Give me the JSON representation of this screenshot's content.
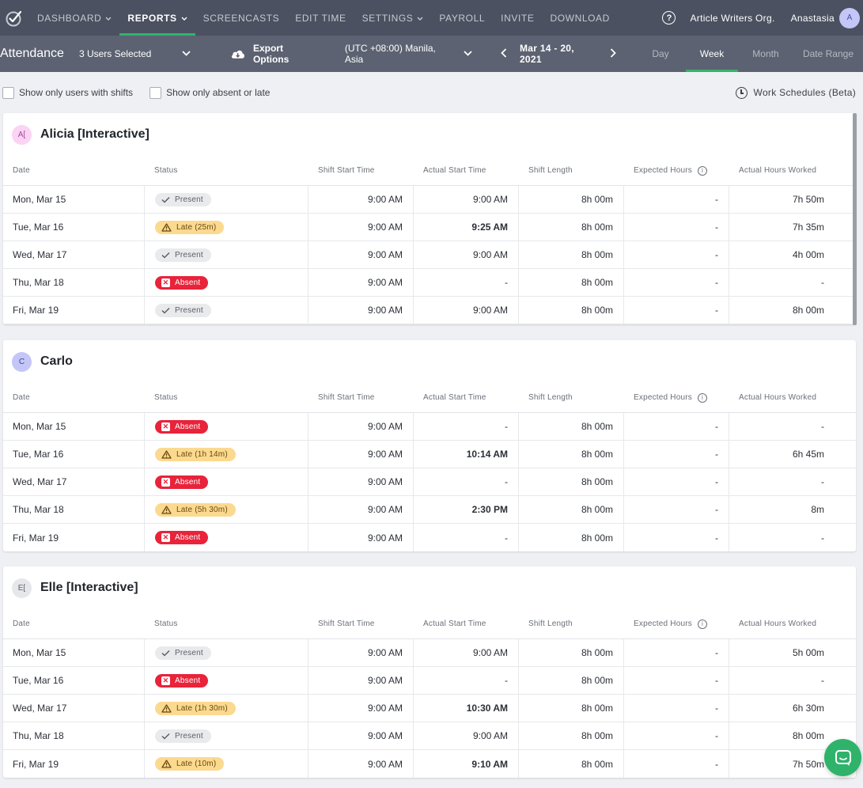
{
  "topnav": {
    "items": [
      {
        "label": "DASHBOARD",
        "caret": true,
        "active": false
      },
      {
        "label": "REPORTS",
        "caret": true,
        "active": true
      },
      {
        "label": "SCREENCASTS",
        "caret": false,
        "active": false
      },
      {
        "label": "EDIT TIME",
        "caret": false,
        "active": false
      },
      {
        "label": "SETTINGS",
        "caret": true,
        "active": false
      },
      {
        "label": "PAYROLL",
        "caret": false,
        "active": false
      },
      {
        "label": "INVITE",
        "caret": false,
        "active": false
      },
      {
        "label": "DOWNLOAD",
        "caret": false,
        "active": false
      }
    ],
    "help_glyph": "?",
    "org_name": "Article Writers Org.",
    "user_name": "Anastasia",
    "user_initial": "A"
  },
  "subbar": {
    "title": "Attendance",
    "users_selected": "3 Users Selected",
    "export_label": "Export Options",
    "timezone": "(UTC +08:00) Manila, Asia",
    "date_range": "Mar 14 - 20, 2021",
    "period_tabs": [
      {
        "label": "Day",
        "active": false
      },
      {
        "label": "Week",
        "active": true
      },
      {
        "label": "Month",
        "active": false
      },
      {
        "label": "Date Range",
        "active": false
      }
    ]
  },
  "filters": {
    "show_only_shifts": "Show only users with shifts",
    "show_only_absent": "Show only absent or late",
    "work_schedules": "Work Schedules (Beta)"
  },
  "columns": [
    "Date",
    "Status",
    "Shift Start Time",
    "Actual Start Time",
    "Shift Length",
    "Expected Hours",
    "Actual Hours Worked"
  ],
  "colors": {
    "accent": "#2fb36b",
    "present": "#e9eaec",
    "late": "#fbd98f",
    "absent": "#e8233a",
    "topnav": "#4b5160",
    "subbar": "#5c6271"
  },
  "users": [
    {
      "name": "Alicia [Interactive]",
      "avatar": "A[",
      "avatar_color": "#fbd3f3",
      "avatar_text_color": "#a0489a",
      "rows": [
        {
          "date": "Mon, Mar 15",
          "status": "present",
          "status_label": "Present",
          "shift_start": "9:00 AM",
          "actual_start": "9:00 AM",
          "actual_bold": false,
          "shift_length": "8h 00m",
          "expected": "-",
          "worked": "7h 50m"
        },
        {
          "date": "Tue, Mar 16",
          "status": "late",
          "status_label": "Late (25m)",
          "shift_start": "9:00 AM",
          "actual_start": "9:25 AM",
          "actual_bold": true,
          "shift_length": "8h 00m",
          "expected": "-",
          "worked": "7h 35m"
        },
        {
          "date": "Wed, Mar 17",
          "status": "present",
          "status_label": "Present",
          "shift_start": "9:00 AM",
          "actual_start": "9:00 AM",
          "actual_bold": false,
          "shift_length": "8h 00m",
          "expected": "-",
          "worked": "4h 00m"
        },
        {
          "date": "Thu, Mar 18",
          "status": "absent",
          "status_label": "Absent",
          "shift_start": "9:00 AM",
          "actual_start": "-",
          "actual_bold": false,
          "shift_length": "8h 00m",
          "expected": "-",
          "worked": "-"
        },
        {
          "date": "Fri, Mar 19",
          "status": "present",
          "status_label": "Present",
          "shift_start": "9:00 AM",
          "actual_start": "9:00 AM",
          "actual_bold": false,
          "shift_length": "8h 00m",
          "expected": "-",
          "worked": "8h 00m"
        }
      ]
    },
    {
      "name": "Carlo",
      "avatar": "C",
      "avatar_color": "#c3c6f7",
      "avatar_text_color": "#3f4596",
      "rows": [
        {
          "date": "Mon, Mar 15",
          "status": "absent",
          "status_label": "Absent",
          "shift_start": "9:00 AM",
          "actual_start": "-",
          "actual_bold": false,
          "shift_length": "8h 00m",
          "expected": "-",
          "worked": "-"
        },
        {
          "date": "Tue, Mar 16",
          "status": "late",
          "status_label": "Late (1h 14m)",
          "shift_start": "9:00 AM",
          "actual_start": "10:14 AM",
          "actual_bold": true,
          "shift_length": "8h 00m",
          "expected": "-",
          "worked": "6h 45m"
        },
        {
          "date": "Wed, Mar 17",
          "status": "absent",
          "status_label": "Absent",
          "shift_start": "9:00 AM",
          "actual_start": "-",
          "actual_bold": false,
          "shift_length": "8h 00m",
          "expected": "-",
          "worked": "-"
        },
        {
          "date": "Thu, Mar 18",
          "status": "late",
          "status_label": "Late (5h 30m)",
          "shift_start": "9:00 AM",
          "actual_start": "2:30 PM",
          "actual_bold": true,
          "shift_length": "8h 00m",
          "expected": "-",
          "worked": "8m"
        },
        {
          "date": "Fri, Mar 19",
          "status": "absent",
          "status_label": "Absent",
          "shift_start": "9:00 AM",
          "actual_start": "-",
          "actual_bold": false,
          "shift_length": "8h 00m",
          "expected": "-",
          "worked": "-"
        }
      ]
    },
    {
      "name": "Elle [Interactive]",
      "avatar": "E[",
      "avatar_color": "#e6e7ea",
      "avatar_text_color": "#5b6069",
      "rows": [
        {
          "date": "Mon, Mar 15",
          "status": "present",
          "status_label": "Present",
          "shift_start": "9:00 AM",
          "actual_start": "9:00 AM",
          "actual_bold": false,
          "shift_length": "8h 00m",
          "expected": "-",
          "worked": "5h 00m"
        },
        {
          "date": "Tue, Mar 16",
          "status": "absent",
          "status_label": "Absent",
          "shift_start": "9:00 AM",
          "actual_start": "-",
          "actual_bold": false,
          "shift_length": "8h 00m",
          "expected": "-",
          "worked": "-"
        },
        {
          "date": "Wed, Mar 17",
          "status": "late",
          "status_label": "Late (1h 30m)",
          "shift_start": "9:00 AM",
          "actual_start": "10:30 AM",
          "actual_bold": true,
          "shift_length": "8h 00m",
          "expected": "-",
          "worked": "6h 30m"
        },
        {
          "date": "Thu, Mar 18",
          "status": "present",
          "status_label": "Present",
          "shift_start": "9:00 AM",
          "actual_start": "9:00 AM",
          "actual_bold": false,
          "shift_length": "8h 00m",
          "expected": "-",
          "worked": "8h 00m"
        },
        {
          "date": "Fri, Mar 19",
          "status": "late",
          "status_label": "Late (10m)",
          "shift_start": "9:00 AM",
          "actual_start": "9:10 AM",
          "actual_bold": true,
          "shift_length": "8h 00m",
          "expected": "-",
          "worked": "7h 50m"
        }
      ]
    }
  ]
}
